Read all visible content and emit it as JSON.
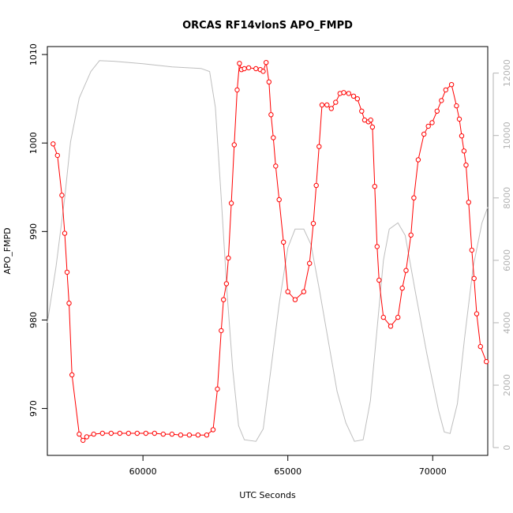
{
  "chart_data": {
    "type": "line",
    "title": "ORCAS RF14vlonS APO_FMPD",
    "xlabel": "UTC Seconds",
    "ylabel": "APO_FMPD",
    "xlim": [
      56700,
      71900
    ],
    "ylim": [
      964.7,
      1010.9
    ],
    "y2lim": [
      -250,
      12850
    ],
    "xticks": [
      60000,
      65000,
      70000
    ],
    "yticks": [
      970,
      980,
      990,
      1000,
      1010
    ],
    "y2ticks": [
      0,
      2000,
      4000,
      6000,
      8000,
      10000,
      12000
    ],
    "grid": false,
    "series": [
      {
        "role": "primary",
        "axis": "left",
        "color": "#ff0000",
        "markers": "open-circle",
        "points": [
          [
            56900,
            999.9
          ],
          [
            57050,
            998.6
          ],
          [
            57200,
            994.1
          ],
          [
            57300,
            989.8
          ],
          [
            57380,
            985.4
          ],
          [
            57450,
            981.9
          ],
          [
            57550,
            973.8
          ],
          [
            57800,
            967.1
          ],
          [
            57930,
            966.4
          ],
          [
            58060,
            966.8
          ],
          [
            58300,
            967.1
          ],
          [
            58600,
            967.2
          ],
          [
            58900,
            967.2
          ],
          [
            59200,
            967.2
          ],
          [
            59500,
            967.2
          ],
          [
            59800,
            967.2
          ],
          [
            60100,
            967.2
          ],
          [
            60400,
            967.2
          ],
          [
            60700,
            967.1
          ],
          [
            61000,
            967.1
          ],
          [
            61300,
            967.0
          ],
          [
            61600,
            967.0
          ],
          [
            61900,
            967.0
          ],
          [
            62200,
            967.0
          ],
          [
            62420,
            967.6
          ],
          [
            62570,
            972.2
          ],
          [
            62700,
            978.8
          ],
          [
            62780,
            982.3
          ],
          [
            62880,
            984.1
          ],
          [
            62950,
            987.0
          ],
          [
            63050,
            993.2
          ],
          [
            63150,
            999.8
          ],
          [
            63250,
            1006.0
          ],
          [
            63330,
            1009.0
          ],
          [
            63400,
            1008.3
          ],
          [
            63500,
            1008.4
          ],
          [
            63650,
            1008.5
          ],
          [
            63900,
            1008.4
          ],
          [
            64050,
            1008.3
          ],
          [
            64150,
            1008.1
          ],
          [
            64250,
            1009.1
          ],
          [
            64350,
            1006.9
          ],
          [
            64420,
            1003.2
          ],
          [
            64500,
            1000.6
          ],
          [
            64580,
            997.4
          ],
          [
            64700,
            993.6
          ],
          [
            64850,
            988.8
          ],
          [
            65000,
            983.2
          ],
          [
            65250,
            982.3
          ],
          [
            65550,
            983.2
          ],
          [
            65750,
            986.4
          ],
          [
            65880,
            990.9
          ],
          [
            65980,
            995.2
          ],
          [
            66080,
            999.6
          ],
          [
            66180,
            1004.3
          ],
          [
            66350,
            1004.3
          ],
          [
            66500,
            1003.9
          ],
          [
            66650,
            1004.6
          ],
          [
            66800,
            1005.6
          ],
          [
            66930,
            1005.7
          ],
          [
            67100,
            1005.6
          ],
          [
            67270,
            1005.3
          ],
          [
            67400,
            1005.0
          ],
          [
            67550,
            1003.6
          ],
          [
            67650,
            1002.6
          ],
          [
            67780,
            1002.4
          ],
          [
            67860,
            1002.6
          ],
          [
            67920,
            1001.8
          ],
          [
            68000,
            995.1
          ],
          [
            68080,
            988.3
          ],
          [
            68150,
            984.5
          ],
          [
            68300,
            980.3
          ],
          [
            68550,
            979.3
          ],
          [
            68800,
            980.3
          ],
          [
            68950,
            983.6
          ],
          [
            69080,
            985.6
          ],
          [
            69250,
            989.6
          ],
          [
            69350,
            993.8
          ],
          [
            69500,
            998.1
          ],
          [
            69700,
            1001.0
          ],
          [
            69850,
            1001.9
          ],
          [
            69980,
            1002.3
          ],
          [
            70150,
            1003.6
          ],
          [
            70300,
            1004.8
          ],
          [
            70450,
            1006.0
          ],
          [
            70650,
            1006.6
          ],
          [
            70820,
            1004.2
          ],
          [
            70920,
            1002.7
          ],
          [
            71000,
            1000.8
          ],
          [
            71080,
            999.1
          ],
          [
            71150,
            997.5
          ],
          [
            71240,
            993.3
          ],
          [
            71350,
            987.9
          ],
          [
            71430,
            984.7
          ],
          [
            71520,
            980.7
          ],
          [
            71650,
            977.0
          ],
          [
            71850,
            975.3
          ]
        ]
      },
      {
        "role": "secondary",
        "axis": "right",
        "color": "#bebebe",
        "markers": "none",
        "points": [
          [
            56700,
            4000
          ],
          [
            57000,
            5800
          ],
          [
            57300,
            8000
          ],
          [
            57500,
            9800
          ],
          [
            57800,
            11200
          ],
          [
            58200,
            12050
          ],
          [
            58500,
            12400
          ],
          [
            59000,
            12380
          ],
          [
            60000,
            12300
          ],
          [
            61000,
            12200
          ],
          [
            62000,
            12150
          ],
          [
            62300,
            12050
          ],
          [
            62500,
            10900
          ],
          [
            62700,
            8000
          ],
          [
            62900,
            5000
          ],
          [
            63100,
            2500
          ],
          [
            63300,
            700
          ],
          [
            63500,
            250
          ],
          [
            63900,
            200
          ],
          [
            64150,
            600
          ],
          [
            64400,
            2400
          ],
          [
            64700,
            4600
          ],
          [
            65000,
            6400
          ],
          [
            65250,
            7000
          ],
          [
            65550,
            7000
          ],
          [
            65800,
            6500
          ],
          [
            66100,
            5000
          ],
          [
            66400,
            3400
          ],
          [
            66700,
            1800
          ],
          [
            67000,
            800
          ],
          [
            67300,
            200
          ],
          [
            67600,
            250
          ],
          [
            67850,
            1500
          ],
          [
            68100,
            4000
          ],
          [
            68300,
            6000
          ],
          [
            68500,
            7000
          ],
          [
            68800,
            7200
          ],
          [
            69050,
            6800
          ],
          [
            69400,
            5000
          ],
          [
            69800,
            3000
          ],
          [
            70200,
            1200
          ],
          [
            70400,
            500
          ],
          [
            70600,
            450
          ],
          [
            70850,
            1400
          ],
          [
            71100,
            3500
          ],
          [
            71400,
            5800
          ],
          [
            71700,
            7200
          ],
          [
            71900,
            7700
          ]
        ]
      }
    ]
  }
}
